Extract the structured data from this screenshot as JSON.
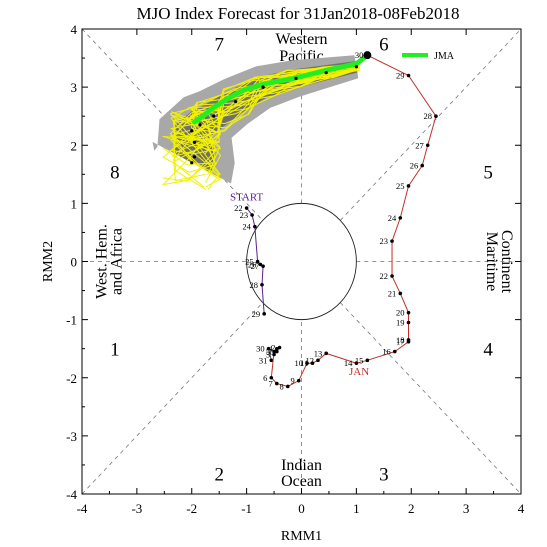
{
  "chart_data": {
    "type": "line",
    "title": "MJO Index Forecast for 31Jan2018-08Feb2018",
    "xlabel": "RMM1",
    "ylabel": "RMM2",
    "xlim": [
      -4,
      4
    ],
    "ylim": [
      -4,
      4
    ],
    "xticks": [
      "-4",
      "-3",
      "-2",
      "-1",
      "0",
      "1",
      "2",
      "3",
      "4"
    ],
    "yticks": [
      "-4",
      "-3",
      "-2",
      "-1",
      "0",
      "1",
      "2",
      "3",
      "4"
    ],
    "phases": [
      {
        "label": "1",
        "x": -3.4,
        "y": -1.5
      },
      {
        "label": "2",
        "x": -1.5,
        "y": -3.65
      },
      {
        "label": "3",
        "x": 1.5,
        "y": -3.65
      },
      {
        "label": "4",
        "x": 3.4,
        "y": -1.5
      },
      {
        "label": "5",
        "x": 3.4,
        "y": 1.55
      },
      {
        "label": "6",
        "x": 1.5,
        "y": 3.75
      },
      {
        "label": "7",
        "x": -1.5,
        "y": 3.75
      },
      {
        "label": "8",
        "x": -3.4,
        "y": 1.55
      }
    ],
    "regions": {
      "top": [
        "Western",
        "Pacific"
      ],
      "bottom": [
        "Indian",
        "Ocean"
      ],
      "left": [
        "West. Hem.",
        "and Africa"
      ],
      "right": [
        "Maritime",
        "Continent"
      ]
    },
    "start_label": "START",
    "month_label": "JAN",
    "legend": {
      "label": "JMA",
      "color": "#22ee22"
    },
    "series": [
      {
        "color": "#5b1f8c",
        "points": [
          {
            "day": "22",
            "x": -1.0,
            "y": 0.92
          },
          {
            "day": "23",
            "x": -0.9,
            "y": 0.8
          },
          {
            "day": "24",
            "x": -0.85,
            "y": 0.6
          },
          {
            "day": "25",
            "x": -0.8,
            "y": 0.0
          },
          {
            "day": "26",
            "x": -0.75,
            "y": -0.05
          },
          {
            "day": "27",
            "x": -0.7,
            "y": -0.08
          },
          {
            "day": "28",
            "x": -0.72,
            "y": -0.4
          },
          {
            "day": "29",
            "x": -0.68,
            "y": -0.9
          }
        ]
      },
      {
        "color": "#444444",
        "points": [
          {
            "day": "30",
            "x": -0.6,
            "y": -1.5
          },
          {
            "day": "31",
            "x": -0.55,
            "y": -1.7
          }
        ]
      },
      {
        "color": "#c0302a",
        "points": [
          {
            "day": "1",
            "x": -0.45,
            "y": -1.55
          },
          {
            "day": "2",
            "x": -0.4,
            "y": -1.48
          },
          {
            "day": "3",
            "x": -0.5,
            "y": -1.6
          },
          {
            "day": "4",
            "x": -0.45,
            "y": -1.5
          },
          {
            "day": "5",
            "x": -0.5,
            "y": -1.55
          },
          {
            "day": "6",
            "x": -0.55,
            "y": -2.0
          },
          {
            "day": "7",
            "x": -0.45,
            "y": -2.1
          },
          {
            "day": "8",
            "x": -0.25,
            "y": -2.15
          },
          {
            "day": "9",
            "x": -0.05,
            "y": -2.05
          },
          {
            "day": "10",
            "x": 0.1,
            "y": -1.75
          },
          {
            "day": "11",
            "x": 0.2,
            "y": -1.75
          },
          {
            "day": "12",
            "x": 0.3,
            "y": -1.7
          },
          {
            "day": "13",
            "x": 0.45,
            "y": -1.58
          },
          {
            "day": "14",
            "x": 1.0,
            "y": -1.75
          },
          {
            "day": "15",
            "x": 1.2,
            "y": -1.7
          },
          {
            "day": "16",
            "x": 1.7,
            "y": -1.55
          },
          {
            "day": "17",
            "x": 1.95,
            "y": -1.38
          },
          {
            "day": "18",
            "x": 1.95,
            "y": -1.35
          },
          {
            "day": "19",
            "x": 1.95,
            "y": -1.05
          },
          {
            "day": "20",
            "x": 1.95,
            "y": -0.88
          },
          {
            "day": "21",
            "x": 1.8,
            "y": -0.55
          },
          {
            "day": "22",
            "x": 1.65,
            "y": -0.25
          },
          {
            "day": "23",
            "x": 1.65,
            "y": 0.35
          },
          {
            "day": "24",
            "x": 1.8,
            "y": 0.75
          },
          {
            "day": "25",
            "x": 1.95,
            "y": 1.3
          },
          {
            "day": "26",
            "x": 2.2,
            "y": 1.65
          },
          {
            "day": "27",
            "x": 2.3,
            "y": 2.0
          },
          {
            "day": "28",
            "x": 2.45,
            "y": 2.5
          },
          {
            "day": "29",
            "x": 1.95,
            "y": 3.2
          },
          {
            "day": "30",
            "x": 1.2,
            "y": 3.55
          }
        ]
      }
    ],
    "forecast_mean": [
      {
        "x": 1.2,
        "y": 3.55
      },
      {
        "x": 1.0,
        "y": 3.4
      },
      {
        "x": 0.5,
        "y": 3.3
      },
      {
        "x": -0.15,
        "y": 3.15
      },
      {
        "x": -0.7,
        "y": 3.05
      },
      {
        "x": -1.05,
        "y": 2.95
      },
      {
        "x": -1.35,
        "y": 2.8
      },
      {
        "x": -1.6,
        "y": 2.65
      },
      {
        "x": -1.8,
        "y": 2.5
      },
      {
        "x": -1.95,
        "y": 2.4
      }
    ],
    "ensemble_mean": [
      {
        "x": 1.0,
        "y": 3.35
      },
      {
        "x": 0.45,
        "y": 3.25
      },
      {
        "x": -0.1,
        "y": 3.15
      },
      {
        "x": -0.7,
        "y": 3.0
      },
      {
        "x": -1.2,
        "y": 2.75
      },
      {
        "x": -1.6,
        "y": 2.5
      },
      {
        "x": -1.85,
        "y": 2.35
      },
      {
        "x": -2.0,
        "y": 2.25
      },
      {
        "x": -1.95,
        "y": 2.05
      },
      {
        "x": -1.95,
        "y": 1.8
      },
      {
        "x": -2.0,
        "y": 1.7
      }
    ]
  }
}
